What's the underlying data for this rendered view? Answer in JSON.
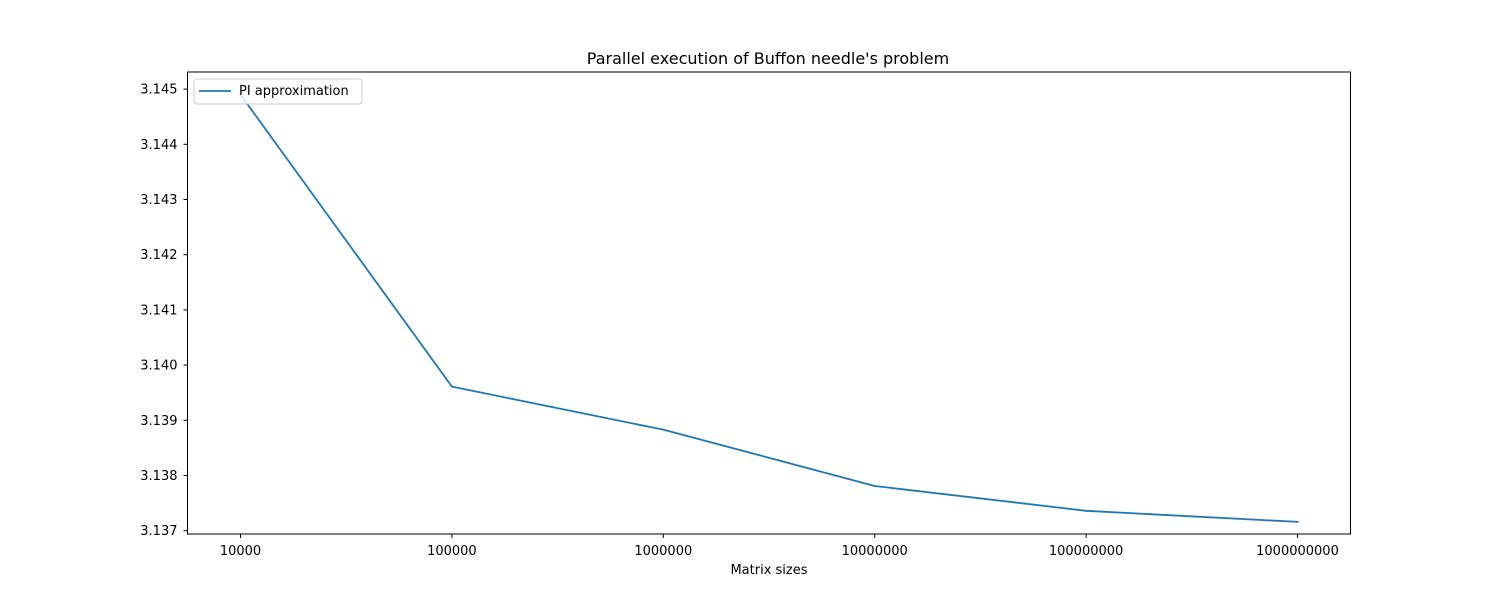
{
  "chart_data": {
    "type": "line",
    "title": "Parallel execution of Buffon needle's problem",
    "xlabel": "Matrix sizes",
    "ylabel": "",
    "categories": [
      "10000",
      "100000",
      "1000000",
      "10000000",
      "100000000",
      "1000000000"
    ],
    "series": [
      {
        "name": "PI approximation",
        "color": "#1f77b4",
        "values": [
          3.1449,
          3.13961,
          3.13883,
          3.13781,
          3.13736,
          3.13716
        ]
      }
    ],
    "ylim": [
      3.13694,
      3.14531
    ],
    "yticks": [
      "3.137",
      "3.138",
      "3.139",
      "3.140",
      "3.141",
      "3.142",
      "3.143",
      "3.144",
      "3.145"
    ],
    "grid": false,
    "legend_position": "upper-left"
  }
}
